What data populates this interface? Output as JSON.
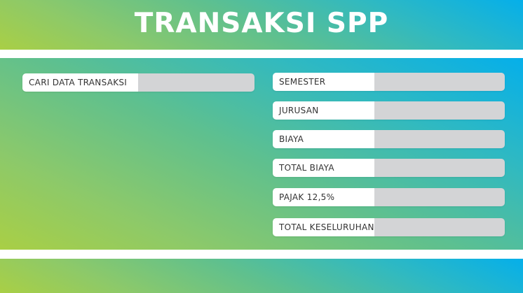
{
  "header": {
    "title": "TRANSAKSI SPP"
  },
  "search": {
    "label": "CARI DATA TRANSAKSI",
    "value": ""
  },
  "form": {
    "fields": [
      {
        "label": "SEMESTER",
        "value": ""
      },
      {
        "label": "JURUSAN",
        "value": ""
      },
      {
        "label": "BIAYA",
        "value": ""
      },
      {
        "label": "TOTAL BIAYA",
        "value": ""
      },
      {
        "label": "PAJAK 12,5%",
        "value": ""
      },
      {
        "label": "TOTAL KESELURUHAN",
        "value": ""
      }
    ]
  },
  "colors": {
    "gradient_start": "#a9cf45",
    "gradient_end": "#05afea",
    "input_bg": "#d3d4d6",
    "label_bg": "#ffffff"
  }
}
